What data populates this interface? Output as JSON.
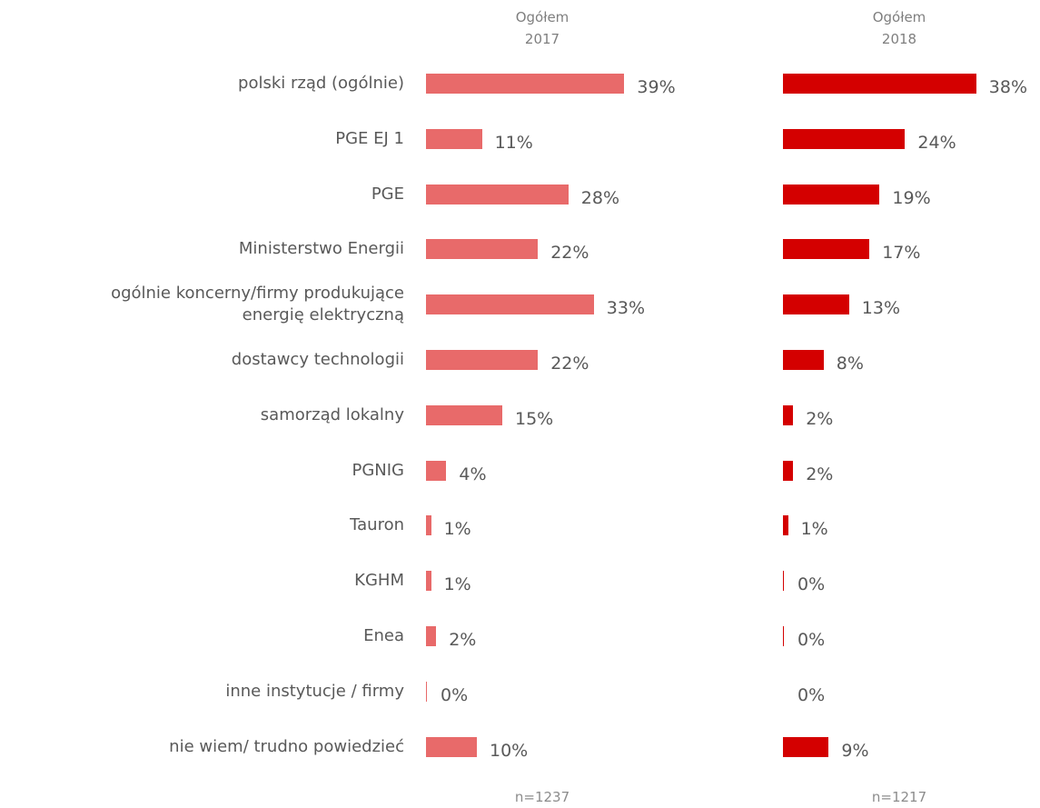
{
  "chart_data": [
    {
      "type": "bar",
      "title": "Ogółem",
      "subtitle": "2017",
      "note": "n=1237",
      "color": "#e86a6a",
      "categories": [
        "polski rząd (ogólnie)",
        "PGE EJ 1",
        "PGE",
        "Ministerstwo Energii",
        "ogólnie koncerny/firmy produkujące\nenergię elektryczną",
        "dostawcy technologii",
        "samorząd lokalny",
        "PGNIG",
        "Tauron",
        "KGHM",
        "Enea",
        "inne instytucje / firmy",
        "nie wiem/ trudno powiedzieć"
      ],
      "values": [
        39,
        11,
        28,
        22,
        33,
        22,
        15,
        4,
        1,
        1,
        2,
        0.2,
        10
      ],
      "value_labels": [
        "39%",
        "11%",
        "28%",
        "22%",
        "33%",
        "22%",
        "15%",
        "4%",
        "1%",
        "1%",
        "2%",
        "0%",
        "10%"
      ]
    },
    {
      "type": "bar",
      "title": "Ogółem",
      "subtitle": "2018",
      "note": "n=1217",
      "color": "#d40000",
      "values": [
        38,
        24,
        19,
        17,
        13,
        8,
        2,
        2,
        1,
        0.2,
        0.2,
        0,
        9
      ],
      "value_labels": [
        "38%",
        "24%",
        "19%",
        "17%",
        "13%",
        "8%",
        "2%",
        "2%",
        "1%",
        "0%",
        "0%",
        "0%",
        "9%"
      ]
    }
  ]
}
